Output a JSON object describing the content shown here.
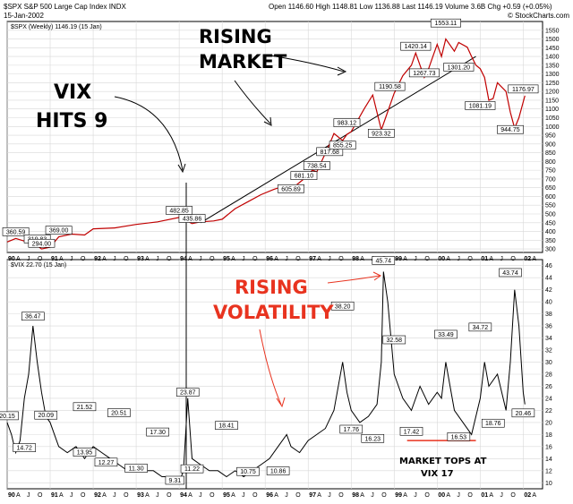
{
  "header": {
    "symbol": "$SPX",
    "name": "S&P 500 Large Cap Index",
    "exchange": "INDX",
    "date": "15-Jan-2002",
    "open_label": "Open",
    "open": "1146.60",
    "high_label": "High",
    "high": "1148.81",
    "low_label": "Low",
    "low": "1136.88",
    "close_label": "Last",
    "close": "1146.19",
    "volume_label": "Volume",
    "volume": "3.6B",
    "change_label": "Chg",
    "change": "+0.59 (+0.05%)",
    "brand": "© StockCharts.com"
  },
  "annotations": {
    "vix9_line1": "VIX",
    "vix9_line2": "HITS 9",
    "rising_market_line1": "RISING",
    "rising_market_line2": "MARKET",
    "rising_vol_line1": "RISING",
    "rising_vol_line2": "VOLATILITY",
    "tops_line1": "MARKET TOPS AT",
    "tops_line2": "VIX 17"
  },
  "chart_data": [
    {
      "type": "line",
      "title": "$SPX (Weekly) 1146.19 (15 Jan)",
      "price_color": "#c00000",
      "ylim": [
        280,
        1600
      ],
      "yticks": [
        300,
        350,
        400,
        450,
        500,
        550,
        600,
        650,
        700,
        750,
        800,
        850,
        900,
        950,
        1000,
        1050,
        1100,
        1150,
        1200,
        1250,
        1300,
        1350,
        1400,
        1450,
        1500,
        1550
      ],
      "x": [
        1990.0,
        1990.2,
        1990.4,
        1990.55,
        1990.7,
        1990.8,
        1991.0,
        1991.2,
        1991.5,
        1991.8,
        1992.0,
        1992.5,
        1993.0,
        1993.5,
        1994.0,
        1994.1,
        1994.3,
        1994.5,
        1994.8,
        1995.0,
        1995.3,
        1995.6,
        1995.9,
        1996.2,
        1996.5,
        1996.6,
        1996.9,
        1997.1,
        1997.2,
        1997.5,
        1997.6,
        1997.8,
        1997.9,
        1998.0,
        1998.3,
        1998.5,
        1998.6,
        1998.7,
        1998.8,
        1999.0,
        1999.2,
        1999.4,
        1999.5,
        1999.7,
        1999.8,
        1999.9,
        2000.0,
        2000.1,
        2000.2,
        2000.4,
        2000.5,
        2000.7,
        2000.8,
        2000.9,
        2001.0,
        2001.1,
        2001.2,
        2001.3,
        2001.4,
        2001.6,
        2001.7,
        2001.8,
        2001.9,
        2002.0,
        2002.04
      ],
      "y": [
        340,
        360,
        345,
        355,
        319,
        300,
        310,
        369,
        385,
        380,
        415,
        420,
        440,
        455,
        480,
        470,
        445,
        455,
        460,
        470,
        530,
        570,
        610,
        640,
        665,
        640,
        700,
        750,
        740,
        900,
        960,
        920,
        955,
        970,
        1100,
        1180,
        1080,
        980,
        1050,
        1190,
        1290,
        1350,
        1420,
        1280,
        1330,
        1400,
        1469,
        1400,
        1500,
        1430,
        1480,
        1453,
        1400,
        1350,
        1330,
        1280,
        1150,
        1160,
        1250,
        1200,
        1081,
        990,
        1050,
        1140,
        1176
      ],
      "labels": [
        {
          "text": "360.59",
          "x": 1990.2,
          "y": 360
        },
        {
          "text": "319.83",
          "x": 1990.7,
          "y": 319
        },
        {
          "text": "369.00",
          "x": 1991.2,
          "y": 369
        },
        {
          "text": "294.00",
          "x": 1990.8,
          "y": 294
        },
        {
          "text": "482.85",
          "x": 1994.0,
          "y": 482
        },
        {
          "text": "435.86",
          "x": 1994.3,
          "y": 436
        },
        {
          "text": "605.89",
          "x": 1996.6,
          "y": 606
        },
        {
          "text": "681.10",
          "x": 1996.9,
          "y": 681
        },
        {
          "text": "738.54",
          "x": 1997.2,
          "y": 738
        },
        {
          "text": "817.68",
          "x": 1997.5,
          "y": 818
        },
        {
          "text": "855.25",
          "x": 1997.8,
          "y": 855
        },
        {
          "text": "983.12",
          "x": 1997.9,
          "y": 983
        },
        {
          "text": "923.32",
          "x": 1998.7,
          "y": 923
        },
        {
          "text": "1190.58",
          "x": 1998.9,
          "y": 1190
        },
        {
          "text": "1267.73",
          "x": 1999.7,
          "y": 1268
        },
        {
          "text": "1420.14",
          "x": 1999.5,
          "y": 1420
        },
        {
          "text": "1553.11",
          "x": 2000.2,
          "y": 1553
        },
        {
          "text": "1301.20",
          "x": 2000.5,
          "y": 1301
        },
        {
          "text": "1081.19",
          "x": 2001.0,
          "y": 1081
        },
        {
          "text": "944.75",
          "x": 2001.7,
          "y": 944
        },
        {
          "text": "1176.97",
          "x": 2002.0,
          "y": 1176
        }
      ],
      "trendline": {
        "x": [
          1994.5,
          2000.9
        ],
        "y": [
          450,
          1400
        ]
      }
    },
    {
      "type": "line",
      "title": "$VIX 22.70 (15 Jan)",
      "ylim": [
        9,
        47
      ],
      "yticks": [
        10,
        12,
        14,
        16,
        18,
        20,
        22,
        24,
        26,
        28,
        30,
        32,
        34,
        36,
        38,
        40,
        42,
        44,
        46
      ],
      "x": [
        1990.0,
        1990.1,
        1990.2,
        1990.3,
        1990.4,
        1990.5,
        1990.6,
        1990.7,
        1990.8,
        1990.9,
        1991.0,
        1991.1,
        1991.2,
        1991.4,
        1991.6,
        1991.8,
        1992.0,
        1992.2,
        1992.4,
        1992.6,
        1992.8,
        1993.0,
        1993.2,
        1993.4,
        1993.6,
        1993.8,
        1994.0,
        1994.1,
        1994.2,
        1994.3,
        1994.5,
        1994.7,
        1994.9,
        1995.1,
        1995.3,
        1995.5,
        1995.7,
        1995.9,
        1996.1,
        1996.3,
        1996.5,
        1996.6,
        1996.8,
        1997.0,
        1997.2,
        1997.4,
        1997.6,
        1997.8,
        1997.9,
        1998.0,
        1998.2,
        1998.4,
        1998.6,
        1998.7,
        1998.75,
        1998.85,
        1999.0,
        1999.2,
        1999.4,
        1999.6,
        1999.8,
        2000.0,
        2000.1,
        2000.2,
        2000.4,
        2000.6,
        2000.8,
        2001.0,
        2001.1,
        2001.2,
        2001.4,
        2001.6,
        2001.7,
        2001.8,
        2001.9,
        2002.0,
        2002.04
      ],
      "y": [
        20,
        18,
        15,
        17,
        24,
        28,
        36,
        30,
        25,
        21,
        20,
        18,
        16,
        15,
        16,
        14,
        16,
        15,
        14,
        13,
        12,
        13,
        12,
        12,
        11,
        11,
        10,
        12,
        24,
        14,
        13,
        12,
        12,
        11,
        12,
        11,
        12,
        13,
        14,
        16,
        18,
        16,
        15,
        17,
        18,
        19,
        22,
        30,
        25,
        22,
        20,
        21,
        23,
        30,
        45,
        40,
        28,
        24,
        22,
        26,
        23,
        25,
        24,
        30,
        22,
        20,
        18,
        24,
        30,
        26,
        28,
        22,
        30,
        42,
        36,
        25,
        23
      ],
      "labels": [
        {
          "text": "20.15",
          "x": 1990.0,
          "y": 20
        },
        {
          "text": "14.72",
          "x": 1990.4,
          "y": 14.7
        },
        {
          "text": "36.47",
          "x": 1990.6,
          "y": 36.5
        },
        {
          "text": "20.09",
          "x": 1990.9,
          "y": 20.1
        },
        {
          "text": "21.52",
          "x": 1991.8,
          "y": 21.5
        },
        {
          "text": "13.95",
          "x": 1991.8,
          "y": 13.95
        },
        {
          "text": "12.27",
          "x": 1992.3,
          "y": 12.3
        },
        {
          "text": "20.51",
          "x": 1992.6,
          "y": 20.5
        },
        {
          "text": "11.30",
          "x": 1993.0,
          "y": 11.3
        },
        {
          "text": "17.30",
          "x": 1993.5,
          "y": 17.3
        },
        {
          "text": "9.31",
          "x": 1993.9,
          "y": 9.3
        },
        {
          "text": "11.22",
          "x": 1994.3,
          "y": 11.2
        },
        {
          "text": "23.87",
          "x": 1994.2,
          "y": 23.9
        },
        {
          "text": "18.41",
          "x": 1995.1,
          "y": 18.4
        },
        {
          "text": "10.75",
          "x": 1995.6,
          "y": 10.75
        },
        {
          "text": "10.86",
          "x": 1996.3,
          "y": 10.86
        },
        {
          "text": "38.20",
          "x": 1997.8,
          "y": 38.2
        },
        {
          "text": "17.76",
          "x": 1998.0,
          "y": 17.76
        },
        {
          "text": "16.23",
          "x": 1998.5,
          "y": 16.23
        },
        {
          "text": "45.74",
          "x": 1998.75,
          "y": 45.74
        },
        {
          "text": "32.58",
          "x": 1999.0,
          "y": 32.6
        },
        {
          "text": "17.42",
          "x": 1999.4,
          "y": 17.42
        },
        {
          "text": "33.49",
          "x": 2000.2,
          "y": 33.5
        },
        {
          "text": "16.53",
          "x": 2000.5,
          "y": 16.53
        },
        {
          "text": "34.72",
          "x": 2001.0,
          "y": 34.7
        },
        {
          "text": "18.76",
          "x": 2001.3,
          "y": 18.76
        },
        {
          "text": "43.74",
          "x": 2001.7,
          "y": 43.74
        },
        {
          "text": "20.46",
          "x": 2002.0,
          "y": 20.46
        }
      ],
      "threshold_line": {
        "y": 17,
        "x": [
          1999.3,
          2000.9
        ],
        "color": "#e8331f"
      }
    }
  ],
  "axis": {
    "years": [
      "90",
      "91",
      "92",
      "93",
      "94",
      "95",
      "96",
      "97",
      "98",
      "99",
      "00",
      "01",
      "02"
    ],
    "months": [
      "A",
      "J",
      "O"
    ]
  }
}
